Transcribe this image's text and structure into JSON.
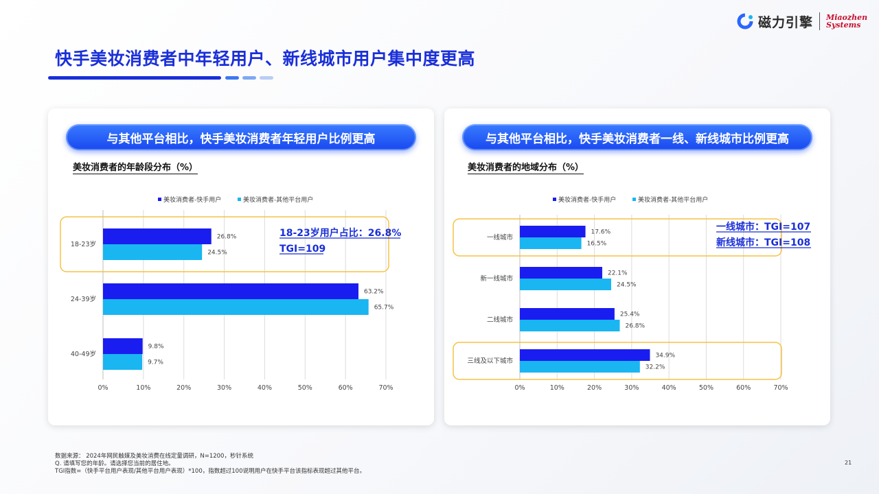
{
  "header": {
    "logo_cn": "磁力引擎",
    "logo_en_1": "Miaozhen",
    "logo_en_2": "Systems",
    "title": "快手美妆消费者中年轻用户、新线城市用户集中度更高"
  },
  "colors": {
    "primary": "#1a2fd8",
    "series1": "#1a1df0",
    "series2": "#19b6f2",
    "highlight": "#f5c242"
  },
  "left_panel": {
    "banner": "与其他平台相比，快手美妆消费者年轻用户比例更高",
    "callout_line1": "18-23岁用户占比：26.8%",
    "callout_line2": "TGI=109"
  },
  "right_panel": {
    "banner": "与其他平台相比，快手美妆消费者一线、新线城市比例更高",
    "callout_line1": "一线城市：TGI=107",
    "callout_line2": "新线城市：TGI=108"
  },
  "chart_data": [
    {
      "type": "bar",
      "orientation": "horizontal",
      "title": "美妆消费者的年龄段分布（%）",
      "categories": [
        "18-23岁",
        "24-39岁",
        "40-49岁"
      ],
      "series": [
        {
          "name": "美妆消费者-快手用户",
          "values": [
            26.8,
            63.2,
            9.8
          ],
          "labels": [
            "26.8%",
            "63.2%",
            "9.8%"
          ]
        },
        {
          "name": "美妆消费者-其他平台用户",
          "values": [
            24.5,
            65.7,
            9.7
          ],
          "labels": [
            "24.5%",
            "65.7%",
            "9.7%"
          ]
        }
      ],
      "xlim": [
        0,
        70
      ],
      "xticks": [
        "0%",
        "10%",
        "20%",
        "30%",
        "40%",
        "50%",
        "60%",
        "70%"
      ],
      "grid": true,
      "legend": "top",
      "highlighted_categories": [
        "18-23岁"
      ]
    },
    {
      "type": "bar",
      "orientation": "horizontal",
      "title": "美妆消费者的地域分布（%）",
      "categories": [
        "一线城市",
        "新一线城市",
        "二线城市",
        "三线及以下城市"
      ],
      "series": [
        {
          "name": "美妆消费者-快手用户",
          "values": [
            17.6,
            22.1,
            25.4,
            34.9
          ],
          "labels": [
            "17.6%",
            "22.1%",
            "25.4%",
            "34.9%"
          ]
        },
        {
          "name": "美妆消费者-其他平台用户",
          "values": [
            16.5,
            24.5,
            26.8,
            32.2
          ],
          "labels": [
            "16.5%",
            "24.5%",
            "26.8%",
            "32.2%"
          ]
        }
      ],
      "xlim": [
        0,
        70
      ],
      "xticks": [
        "0%",
        "10%",
        "20%",
        "30%",
        "40%",
        "50%",
        "60%",
        "70%"
      ],
      "grid": true,
      "legend": "top",
      "highlighted_categories": [
        "一线城市",
        "三线及以下城市"
      ]
    }
  ],
  "footer": {
    "line1": "数据来源： 2024年网民触媒及美妆消费在线定量调研，N=1200，秒针系统",
    "line2": "Q. 请填写您的年龄。请选择您当前的居住地。",
    "line3": "TGI指数=（快手平台用户表现/其他平台用户表现）*100，指数超过100说明用户在快手平台该指标表现超过其他平台。",
    "page": "21"
  }
}
